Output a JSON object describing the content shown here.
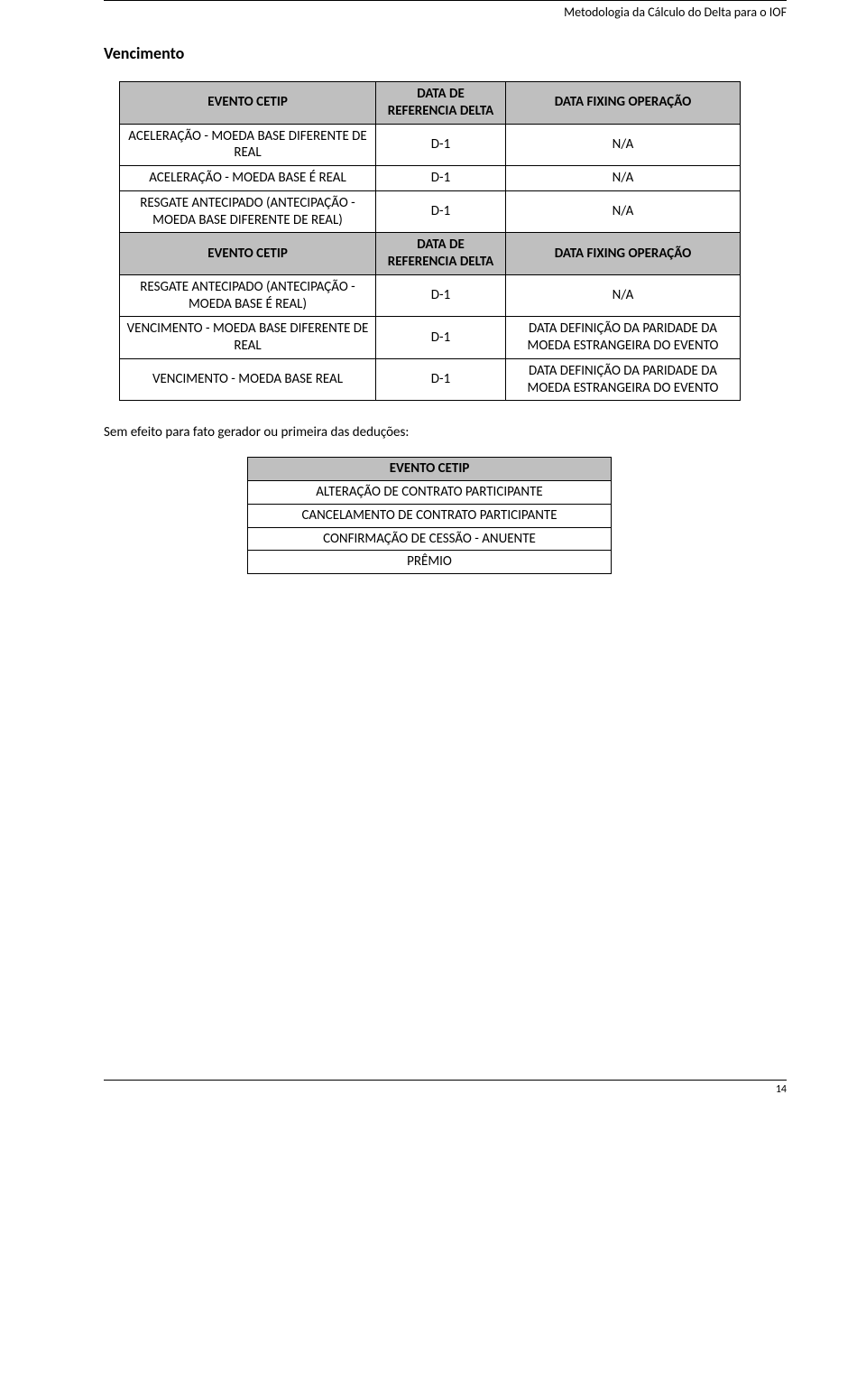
{
  "header": {
    "text": "Metodologia da Cálculo do Delta para o IOF"
  },
  "section": {
    "title": "Vencimento"
  },
  "table1": {
    "header1": {
      "c0": "EVENTO CETIP",
      "c1": "DATA DE REFERENCIA DELTA",
      "c2": "DATA FIXING OPERAÇÃO"
    },
    "rows1": [
      {
        "c0": "ACELERAÇÃO - MOEDA BASE DIFERENTE DE REAL",
        "c1": "D-1",
        "c2": "N/A"
      },
      {
        "c0": "ACELERAÇÃO - MOEDA BASE É REAL",
        "c1": "D-1",
        "c2": "N/A"
      },
      {
        "c0": "RESGATE ANTECIPADO (ANTECIPAÇÃO - MOEDA BASE DIFERENTE DE REAL)",
        "c1": "D-1",
        "c2": "N/A"
      }
    ],
    "header2": {
      "c0": "EVENTO CETIP",
      "c1": "DATA DE REFERENCIA DELTA",
      "c2": "DATA FIXING OPERAÇÃO"
    },
    "rows2": [
      {
        "c0": "RESGATE ANTECIPADO (ANTECIPAÇÃO - MOEDA BASE É REAL)",
        "c1": "D-1",
        "c2": "N/A"
      },
      {
        "c0": "VENCIMENTO - MOEDA BASE DIFERENTE DE REAL",
        "c1": "D-1",
        "c2": "DATA DEFINIÇÃO DA PARIDADE DA MOEDA ESTRANGEIRA DO EVENTO"
      },
      {
        "c0": "VENCIMENTO - MOEDA BASE REAL",
        "c1": "D-1",
        "c2": "DATA DEFINIÇÃO DA PARIDADE DA MOEDA ESTRANGEIRA DO EVENTO"
      }
    ],
    "colors": {
      "header_bg": "#bfbfbf",
      "border": "#000000"
    }
  },
  "midtext": "Sem efeito para fato gerador ou primeira das deduções:",
  "table2": {
    "header": "EVENTO CETIP",
    "rows": [
      "ALTERAÇÃO DE CONTRATO PARTICIPANTE",
      "CANCELAMENTO DE CONTRATO PARTICIPANTE",
      "CONFIRMAÇÃO DE CESSÃO - ANUENTE",
      "PRÊMIO"
    ],
    "colors": {
      "header_bg": "#bfbfbf",
      "border": "#000000"
    }
  },
  "footer": {
    "page_number": "14"
  }
}
